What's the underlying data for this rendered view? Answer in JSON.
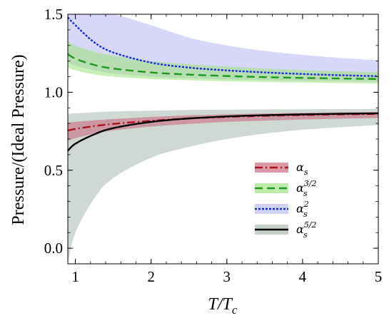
{
  "chart_data": {
    "type": "line",
    "title": "",
    "xlabel": "T/T_c",
    "ylabel": "Pressure/(Ideal Pressure)",
    "xlim": [
      0.9,
      5.0
    ],
    "ylim": [
      -0.1,
      1.5
    ],
    "x_ticks": [
      1,
      2,
      3,
      4,
      5
    ],
    "x_tick_labels": [
      "1",
      "2",
      "3",
      "4",
      "5"
    ],
    "y_ticks": [
      0.0,
      0.5,
      1.0,
      1.5
    ],
    "y_tick_labels": [
      "0.0",
      "0.5",
      "1.0",
      "1.5"
    ],
    "grid": false,
    "legend_position": "lower-right",
    "series": [
      {
        "name": "α_s",
        "label_base": "α",
        "label_sub": "s",
        "label_exp": "",
        "color": "#b0131e",
        "band_color": "#c8627a",
        "dash": "dashdot",
        "x": [
          0.9,
          1.0,
          1.25,
          1.5,
          2.0,
          2.5,
          3.0,
          3.5,
          4.0,
          4.5,
          5.0
        ],
        "y": [
          0.755,
          0.765,
          0.783,
          0.797,
          0.817,
          0.832,
          0.842,
          0.849,
          0.854,
          0.858,
          0.861
        ],
        "band_upper": [
          0.805,
          0.81,
          0.82,
          0.828,
          0.842,
          0.852,
          0.859,
          0.864,
          0.868,
          0.871,
          0.873
        ],
        "band_lower": [
          0.69,
          0.705,
          0.735,
          0.755,
          0.78,
          0.797,
          0.81,
          0.818,
          0.825,
          0.83,
          0.835
        ]
      },
      {
        "name": "α_s^{3/2}",
        "label_base": "α",
        "label_sub": "s",
        "label_exp": "3/2",
        "color": "#1e9a1e",
        "band_color": "#9ee07e",
        "dash": "dashed",
        "x": [
          0.9,
          1.0,
          1.25,
          1.5,
          2.0,
          2.5,
          3.0,
          3.5,
          4.0,
          4.5,
          5.0
        ],
        "y": [
          1.245,
          1.215,
          1.175,
          1.152,
          1.127,
          1.113,
          1.104,
          1.097,
          1.092,
          1.088,
          1.085
        ],
        "band_upper": [
          1.33,
          1.3,
          1.26,
          1.235,
          1.2,
          1.18,
          1.165,
          1.152,
          1.142,
          1.134,
          1.128
        ],
        "band_lower": [
          1.16,
          1.14,
          1.115,
          1.1,
          1.085,
          1.077,
          1.07,
          1.066,
          1.062,
          1.059,
          1.056
        ]
      },
      {
        "name": "α_s^2",
        "label_base": "α",
        "label_sub": "s",
        "label_exp": "2",
        "color": "#1a2ed8",
        "band_color": "#b7b8f0",
        "dash": "dotted",
        "x": [
          0.9,
          1.0,
          1.25,
          1.5,
          2.0,
          2.5,
          3.0,
          3.5,
          4.0,
          4.5,
          5.0
        ],
        "y": [
          1.48,
          1.43,
          1.32,
          1.255,
          1.19,
          1.158,
          1.14,
          1.127,
          1.117,
          1.109,
          1.103
        ],
        "band_upper": [
          1.5,
          1.5,
          1.5,
          1.5,
          1.43,
          1.35,
          1.3,
          1.265,
          1.24,
          1.22,
          1.205
        ],
        "band_lower": [
          1.19,
          1.17,
          1.14,
          1.12,
          1.1,
          1.09,
          1.083,
          1.078,
          1.074,
          1.071,
          1.068
        ]
      },
      {
        "name": "α_s^{5/2}",
        "label_base": "α",
        "label_sub": "s",
        "label_exp": "5/2",
        "color": "#000000",
        "band_color": "#a7b8ad",
        "dash": "solid",
        "x": [
          0.9,
          1.0,
          1.25,
          1.5,
          2.0,
          2.5,
          3.0,
          3.5,
          4.0,
          4.5,
          5.0
        ],
        "y": [
          0.625,
          0.67,
          0.73,
          0.77,
          0.81,
          0.832,
          0.845,
          0.853,
          0.858,
          0.862,
          0.865
        ],
        "band_upper": [
          0.86,
          0.865,
          0.872,
          0.877,
          0.882,
          0.886,
          0.888,
          0.89,
          0.891,
          0.892,
          0.893
        ],
        "band_lower": [
          -0.1,
          0.1,
          0.32,
          0.45,
          0.58,
          0.65,
          0.7,
          0.735,
          0.76,
          0.775,
          0.79
        ]
      }
    ]
  }
}
